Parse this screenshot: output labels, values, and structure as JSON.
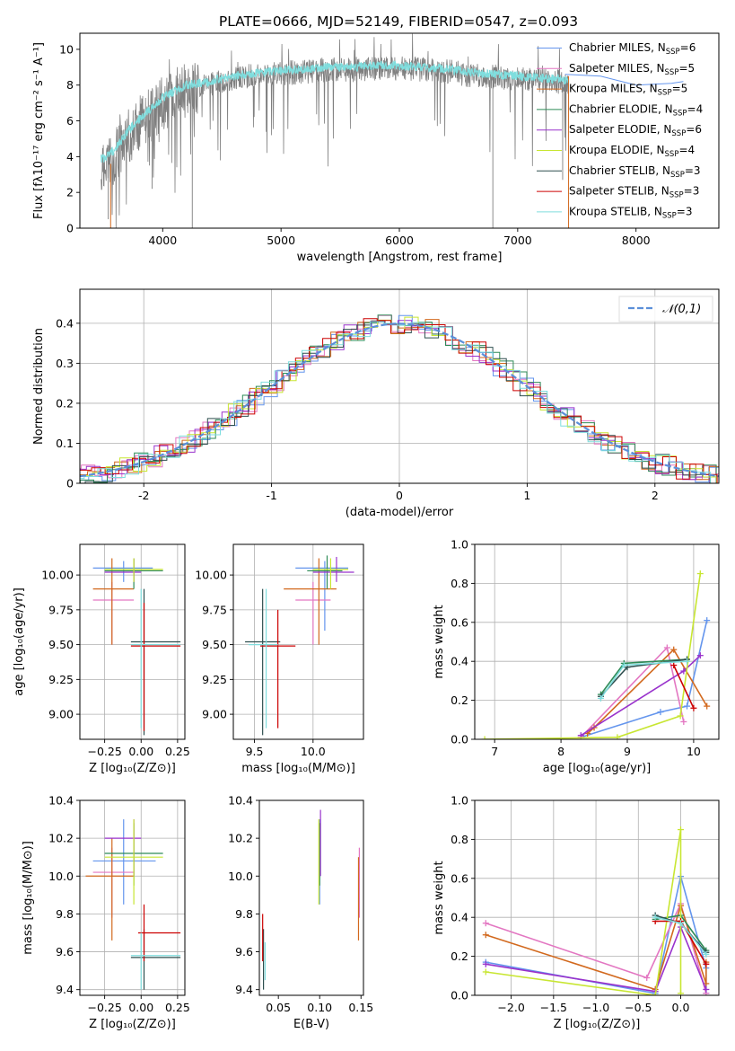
{
  "title": "PLATE=0666, MJD=52149, FIBERID=0547, z=0.093",
  "chart_data": [
    {
      "id": "spectrum",
      "type": "line",
      "title": "PLATE=0666, MJD=52149, FIBERID=0547, z=0.093",
      "xlabel": "wavelength [Angstrom, rest frame]",
      "ylabel": "Flux [fλ10⁻¹⁷ erg cm⁻² s⁻¹ A⁻¹]",
      "xlim": [
        3300,
        8700
      ],
      "ylim": [
        0,
        10.9
      ],
      "xticks": [
        4000,
        5000,
        6000,
        7000,
        8000
      ],
      "yticks": [
        0,
        2,
        4,
        6,
        8,
        10
      ],
      "legend": "top-right",
      "data_envelope": {
        "x": [
          3500,
          3600,
          3700,
          3800,
          4000,
          4200,
          4400,
          4600,
          4800,
          5000,
          5200,
          5400,
          5600,
          5800,
          6000,
          6200,
          6400,
          6600,
          6800,
          7000,
          7200,
          7400
        ],
        "y": [
          3.9,
          4.4,
          5.4,
          6.1,
          7.3,
          8.0,
          8.2,
          8.5,
          8.7,
          8.8,
          8.9,
          9.0,
          9.0,
          9.1,
          9.1,
          9.0,
          8.9,
          8.7,
          8.6,
          8.5,
          8.4,
          8.3
        ]
      },
      "series": [
        {
          "name": "Chabrier MILES, N_SSP=6",
          "color": "#6495ed",
          "x": [
            7400,
            7700,
            8000,
            8300,
            8400
          ],
          "y": [
            8.6,
            8.5,
            8.0,
            8.1,
            8.2
          ]
        },
        {
          "name": "Salpeter MILES, N_SSP=5",
          "color": "#e377c2"
        },
        {
          "name": "Kroupa MILES, N_SSP=5",
          "color": "#d2691e"
        },
        {
          "name": "Chabrier ELODIE, N_SSP=4",
          "color": "#2e8b57"
        },
        {
          "name": "Salpeter ELODIE, N_SSP=6",
          "color": "#9932cc"
        },
        {
          "name": "Kroupa ELODIE, N_SSP=4",
          "color": "#c8e632"
        },
        {
          "name": "Chabrier STELIB, N_SSP=3",
          "color": "#2f4f4f"
        },
        {
          "name": "Salpeter STELIB, N_SSP=3",
          "color": "#cc0000"
        },
        {
          "name": "Kroupa STELIB, N_SSP=3",
          "color": "#7fdede"
        }
      ],
      "legend_entries": [
        {
          "pre": "Chabrier MILES, N",
          "sub": "SSP",
          "post": "=6"
        },
        {
          "pre": "Salpeter MILES, N",
          "sub": "SSP",
          "post": "=5"
        },
        {
          "pre": "Kroupa MILES, N",
          "sub": "SSP",
          "post": "=5"
        },
        {
          "pre": "Chabrier ELODIE, N",
          "sub": "SSP",
          "post": "=4"
        },
        {
          "pre": "Salpeter ELODIE, N",
          "sub": "SSP",
          "post": "=6"
        },
        {
          "pre": "Kroupa ELODIE, N",
          "sub": "SSP",
          "post": "=4"
        },
        {
          "pre": "Chabrier STELIB, N",
          "sub": "SSP",
          "post": "=3"
        },
        {
          "pre": "Salpeter STELIB, N",
          "sub": "SSP",
          "post": "=3"
        },
        {
          "pre": "Kroupa STELIB, N",
          "sub": "SSP",
          "post": "=3"
        }
      ]
    },
    {
      "id": "residuals",
      "type": "line",
      "xlabel": "(data-model)/error",
      "ylabel": "Normed distribution",
      "xlim": [
        -2.5,
        2.5
      ],
      "ylim": [
        0,
        0.485
      ],
      "xticks": [
        -2,
        -1,
        0,
        1,
        2
      ],
      "yticks": [
        0.0,
        0.1,
        0.2,
        0.3,
        0.4
      ],
      "grid": true,
      "legend": "top-right",
      "gaussian_label": "𝒩(0,1)",
      "gaussian_color": "#5b8fd9"
    },
    {
      "id": "age_vs_Z",
      "type": "scatter",
      "xlabel": "Z [log₁₀(Z/Z⊙)]",
      "ylabel": "age  [log₁₀(age/yr)]",
      "xlim": [
        -0.42,
        0.3
      ],
      "ylim": [
        8.82,
        10.22
      ],
      "xticks": [
        -0.25,
        0.0,
        0.25
      ],
      "xticklabels": [
        "−0.25",
        "0.00",
        "0.25"
      ],
      "yticks": [
        9.0,
        9.25,
        9.5,
        9.75,
        10.0
      ],
      "yticklabels": [
        "9.00",
        "9.25",
        "9.50",
        "9.75",
        "10.00"
      ],
      "grid": true,
      "points": [
        {
          "c": "#6495ed",
          "x": -0.12,
          "y": 10.05,
          "xe": [
            -0.33,
            0.08
          ],
          "ye": [
            9.95,
            10.1
          ]
        },
        {
          "c": "#e377c2",
          "x": -0.2,
          "y": 9.82,
          "xe": [
            -0.33,
            -0.05
          ],
          "ye": [
            9.5,
            9.95
          ]
        },
        {
          "c": "#d2691e",
          "x": -0.2,
          "y": 9.9,
          "xe": [
            -0.33,
            -0.05
          ],
          "ye": [
            9.5,
            10.12
          ]
        },
        {
          "c": "#2e8b57",
          "x": -0.05,
          "y": 10.03,
          "xe": [
            -0.25,
            0.15
          ],
          "ye": [
            9.9,
            10.12
          ]
        },
        {
          "c": "#9932cc",
          "x": -0.05,
          "y": 10.02,
          "xe": [
            -0.25,
            0.0
          ],
          "ye": [
            9.95,
            10.12
          ]
        },
        {
          "c": "#c8e632",
          "x": -0.05,
          "y": 10.04,
          "xe": [
            -0.25,
            0.15
          ],
          "ye": [
            9.95,
            10.12
          ]
        },
        {
          "c": "#2f4f4f",
          "x": 0.02,
          "y": 9.52,
          "xe": [
            -0.07,
            0.27
          ],
          "ye": [
            8.85,
            9.9
          ]
        },
        {
          "c": "#cc0000",
          "x": 0.02,
          "y": 9.49,
          "xe": [
            -0.07,
            0.27
          ],
          "ye": [
            8.88,
            9.8
          ]
        },
        {
          "c": "#7fdede",
          "x": 0.0,
          "y": 9.5,
          "xe": [
            -0.07,
            0.27
          ],
          "ye": [
            8.9,
            9.9
          ]
        }
      ]
    },
    {
      "id": "age_vs_mass",
      "type": "scatter",
      "xlabel": "mass [log₁₀(M/M⊙)]",
      "ylabel": "",
      "xlim": [
        9.32,
        10.43
      ],
      "ylim": [
        8.82,
        10.22
      ],
      "xticks": [
        9.5,
        10.0
      ],
      "xticklabels": [
        "9.5",
        "10.0"
      ],
      "yticks": [
        9.0,
        9.25,
        9.5,
        9.75,
        10.0
      ],
      "yticklabels": [
        "9.00",
        "9.25",
        "9.50",
        "9.75",
        "10.00"
      ],
      "grid": true,
      "points": [
        {
          "c": "#6495ed",
          "x": 10.1,
          "y": 10.05,
          "xe": [
            9.85,
            10.3
          ],
          "ye": [
            9.6,
            10.1
          ]
        },
        {
          "c": "#e377c2",
          "x": 10.0,
          "y": 9.82,
          "xe": [
            9.85,
            10.15
          ],
          "ye": [
            9.5,
            9.95
          ]
        },
        {
          "c": "#d2691e",
          "x": 10.05,
          "y": 9.9,
          "xe": [
            9.75,
            10.2
          ],
          "ye": [
            9.5,
            10.12
          ]
        },
        {
          "c": "#2e8b57",
          "x": 10.12,
          "y": 10.03,
          "xe": [
            9.95,
            10.25
          ],
          "ye": [
            9.9,
            10.14
          ]
        },
        {
          "c": "#9932cc",
          "x": 10.2,
          "y": 10.02,
          "xe": [
            10.0,
            10.35
          ],
          "ye": [
            9.95,
            10.13
          ]
        },
        {
          "c": "#c8e632",
          "x": 10.15,
          "y": 10.04,
          "xe": [
            10.0,
            10.3
          ],
          "ye": [
            9.9,
            10.12
          ]
        },
        {
          "c": "#2f4f4f",
          "x": 9.57,
          "y": 9.52,
          "xe": [
            9.42,
            9.72
          ],
          "ye": [
            8.85,
            9.9
          ]
        },
        {
          "c": "#cc0000",
          "x": 9.7,
          "y": 9.49,
          "xe": [
            9.55,
            9.85
          ],
          "ye": [
            8.9,
            9.75
          ]
        },
        {
          "c": "#7fdede",
          "x": 9.6,
          "y": 9.5,
          "xe": [
            9.45,
            9.7
          ],
          "ye": [
            8.9,
            9.9
          ]
        }
      ]
    },
    {
      "id": "weight_vs_age",
      "type": "line",
      "xlabel": "age  [log₁₀(age/yr)]",
      "ylabel": "mass weight",
      "xlim": [
        6.7,
        10.38
      ],
      "ylim": [
        0,
        1
      ],
      "xticks": [
        7,
        8,
        9,
        10
      ],
      "yticks": [
        0.0,
        0.2,
        0.4,
        0.6,
        0.8,
        1.0
      ],
      "yticklabels": [
        "0.0",
        "0.2",
        "0.4",
        "0.6",
        "0.8",
        "1.0"
      ],
      "grid": true,
      "series": [
        {
          "c": "#6495ed",
          "x": [
            8.3,
            9.5,
            9.9,
            10.2
          ],
          "y": [
            0.01,
            0.14,
            0.17,
            0.61
          ]
        },
        {
          "c": "#e377c2",
          "x": [
            8.3,
            9.6,
            9.85
          ],
          "y": [
            0.01,
            0.47,
            0.09
          ]
        },
        {
          "c": "#d2691e",
          "x": [
            8.4,
            8.5,
            9.7,
            10.2
          ],
          "y": [
            0.03,
            0.06,
            0.46,
            0.17
          ]
        },
        {
          "c": "#2e8b57",
          "x": [
            8.6,
            8.95,
            9.9
          ],
          "y": [
            0.23,
            0.39,
            0.41
          ]
        },
        {
          "c": "#9932cc",
          "x": [
            8.3,
            9.85,
            10.1
          ],
          "y": [
            0.02,
            0.35,
            0.43
          ]
        },
        {
          "c": "#c8e632",
          "x": [
            6.85,
            8.85,
            9.8,
            10.1
          ],
          "y": [
            0.0,
            0.01,
            0.12,
            0.85
          ]
        },
        {
          "c": "#2f4f4f",
          "x": [
            8.6,
            9.0,
            9.9
          ],
          "y": [
            0.22,
            0.37,
            0.41
          ]
        },
        {
          "c": "#cc0000",
          "x": [
            9.7,
            10.0
          ],
          "y": [
            0.38,
            0.16
          ]
        },
        {
          "c": "#7fdede",
          "x": [
            8.6,
            8.95,
            9.9
          ],
          "y": [
            0.21,
            0.38,
            0.4
          ]
        }
      ]
    },
    {
      "id": "mass_vs_Z",
      "type": "scatter",
      "xlabel": "Z [log₁₀(Z/Z⊙)]",
      "ylabel": "mass [log₁₀(M/M⊙)]",
      "xlim": [
        -0.42,
        0.3
      ],
      "ylim": [
        9.37,
        10.4
      ],
      "xticks": [
        -0.25,
        0.0,
        0.25
      ],
      "xticklabels": [
        "−0.25",
        "0.00",
        "0.25"
      ],
      "yticks": [
        9.4,
        9.6,
        9.8,
        10.0,
        10.2,
        10.4
      ],
      "yticklabels": [
        "9.4",
        "9.6",
        "9.8",
        "10.0",
        "10.2",
        "10.4"
      ],
      "grid": true,
      "points": [
        {
          "c": "#6495ed",
          "x": -0.12,
          "y": 10.08,
          "xe": [
            -0.33,
            0.1
          ],
          "ye": [
            9.85,
            10.3
          ]
        },
        {
          "c": "#e377c2",
          "x": -0.2,
          "y": 10.02,
          "xe": [
            -0.33,
            -0.05
          ],
          "ye": [
            9.78,
            10.15
          ]
        },
        {
          "c": "#d2691e",
          "x": -0.2,
          "y": 10.0,
          "xe": [
            -0.38,
            -0.05
          ],
          "ye": [
            9.66,
            10.2
          ]
        },
        {
          "c": "#2e8b57",
          "x": -0.05,
          "y": 10.12,
          "xe": [
            -0.25,
            0.15
          ],
          "ye": [
            9.95,
            10.28
          ]
        },
        {
          "c": "#9932cc",
          "x": -0.05,
          "y": 10.2,
          "xe": [
            -0.25,
            0.0
          ],
          "ye": [
            10.0,
            10.3
          ]
        },
        {
          "c": "#c8e632",
          "x": -0.05,
          "y": 10.1,
          "xe": [
            -0.25,
            0.15
          ],
          "ye": [
            9.85,
            10.3
          ]
        },
        {
          "c": "#2f4f4f",
          "x": 0.02,
          "y": 9.57,
          "xe": [
            -0.07,
            0.27
          ],
          "ye": [
            9.4,
            9.72
          ]
        },
        {
          "c": "#cc0000",
          "x": 0.02,
          "y": 9.7,
          "xe": [
            -0.02,
            0.27
          ],
          "ye": [
            9.55,
            9.85
          ]
        },
        {
          "c": "#7fdede",
          "x": 0.0,
          "y": 9.58,
          "xe": [
            -0.07,
            0.27
          ],
          "ye": [
            9.4,
            9.7
          ]
        }
      ]
    },
    {
      "id": "mass_vs_EBV",
      "type": "scatter",
      "xlabel": "E(B-V)",
      "ylabel": "",
      "xlim": [
        0.027,
        0.153
      ],
      "ylim": [
        9.37,
        10.4
      ],
      "xticks": [
        0.05,
        0.1,
        0.15
      ],
      "xticklabels": [
        "0.05",
        "0.10",
        "0.15"
      ],
      "yticks": [
        9.4,
        9.6,
        9.8,
        10.0,
        10.2,
        10.4
      ],
      "yticklabels": [
        "9.4",
        "9.6",
        "9.8",
        "10.0",
        "10.2",
        "10.4"
      ],
      "grid": false,
      "points": [
        {
          "c": "#6495ed",
          "x": 0.1,
          "y": 10.08,
          "xe": [
            0.1,
            0.1
          ],
          "ye": [
            9.85,
            10.3
          ]
        },
        {
          "c": "#e377c2",
          "x": 0.148,
          "y": 10.02,
          "xe": [
            0.148,
            0.148
          ],
          "ye": [
            9.78,
            10.15
          ]
        },
        {
          "c": "#d2691e",
          "x": 0.147,
          "y": 10.0,
          "xe": [
            0.147,
            0.147
          ],
          "ye": [
            9.66,
            10.1
          ]
        },
        {
          "c": "#2e8b57",
          "x": 0.1,
          "y": 10.12,
          "xe": [
            0.1,
            0.1
          ],
          "ye": [
            9.95,
            10.28
          ]
        },
        {
          "c": "#9932cc",
          "x": 0.101,
          "y": 10.2,
          "xe": [
            0.101,
            0.101
          ],
          "ye": [
            10.0,
            10.35
          ]
        },
        {
          "c": "#c8e632",
          "x": 0.099,
          "y": 10.1,
          "xe": [
            0.099,
            0.099
          ],
          "ye": [
            9.85,
            10.3
          ]
        },
        {
          "c": "#2f4f4f",
          "x": 0.032,
          "y": 9.57,
          "xe": [
            0.032,
            0.032
          ],
          "ye": [
            9.4,
            9.72
          ]
        },
        {
          "c": "#cc0000",
          "x": 0.031,
          "y": 9.7,
          "xe": [
            0.031,
            0.031
          ],
          "ye": [
            9.55,
            9.8
          ]
        },
        {
          "c": "#7fdede",
          "x": 0.034,
          "y": 9.58,
          "xe": [
            0.034,
            0.034
          ],
          "ye": [
            9.45,
            9.65
          ]
        }
      ]
    },
    {
      "id": "weight_vs_Z",
      "type": "line",
      "xlabel": "Z [log₁₀(Z/Z⊙)]",
      "ylabel": "mass weight",
      "xlim": [
        -2.43,
        0.45
      ],
      "ylim": [
        0,
        1
      ],
      "xticks": [
        -2.0,
        -1.5,
        -1.0,
        -0.5,
        0.0
      ],
      "xticklabels": [
        "−2.0",
        "−1.5",
        "−1.0",
        "−0.5",
        "0.0"
      ],
      "yticks": [
        0.0,
        0.2,
        0.4,
        0.6,
        0.8,
        1.0
      ],
      "yticklabels": [
        "0.0",
        "0.2",
        "0.4",
        "0.6",
        "0.8",
        "1.0"
      ],
      "grid": true,
      "series": [
        {
          "c": "#6495ed",
          "x": [
            -2.3,
            -0.3,
            0.0,
            0.3,
            0.3
          ],
          "y": [
            0.17,
            0.01,
            0.61,
            0.14,
            0.01
          ]
        },
        {
          "c": "#e377c2",
          "x": [
            -2.3,
            -0.4,
            0.0,
            0.3
          ],
          "y": [
            0.37,
            0.09,
            0.47,
            0.01
          ]
        },
        {
          "c": "#d2691e",
          "x": [
            -2.3,
            -0.3,
            0.0,
            0.3,
            0.3
          ],
          "y": [
            0.31,
            0.03,
            0.46,
            0.06,
            0.17
          ]
        },
        {
          "c": "#2e8b57",
          "x": [
            -0.3,
            0.0,
            0.3
          ],
          "y": [
            0.39,
            0.41,
            0.23
          ]
        },
        {
          "c": "#9932cc",
          "x": [
            -2.3,
            -0.3,
            0.0,
            0.3
          ],
          "y": [
            0.16,
            0.02,
            0.35,
            0.03
          ]
        },
        {
          "c": "#c8e632",
          "x": [
            -2.3,
            -0.3,
            0.0,
            0.0
          ],
          "y": [
            0.12,
            0.0,
            0.85,
            0.01
          ]
        },
        {
          "c": "#2f4f4f",
          "x": [
            -0.3,
            0.0,
            0.3
          ],
          "y": [
            0.41,
            0.37,
            0.22
          ]
        },
        {
          "c": "#cc0000",
          "x": [
            -0.3,
            0.0,
            0.3
          ],
          "y": [
            0.38,
            0.38,
            0.16
          ]
        },
        {
          "c": "#7fdede",
          "x": [
            -0.3,
            0.0,
            0.3
          ],
          "y": [
            0.4,
            0.37,
            0.21
          ]
        }
      ]
    }
  ]
}
